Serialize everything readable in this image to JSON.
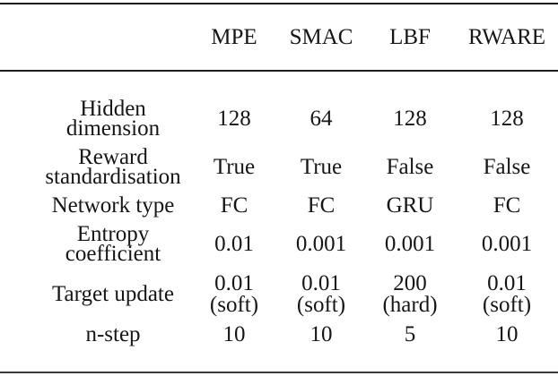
{
  "style": {
    "text_color": "#161616",
    "rule_color": "#1c1c1c",
    "background_color": "#ffffff"
  },
  "table": {
    "columns": [
      "MPE",
      "SMAC",
      "LBF",
      "RWARE"
    ],
    "rows": [
      {
        "label": "Hidden\ndimension",
        "values": [
          "128",
          "64",
          "128",
          "128"
        ]
      },
      {
        "label": "Reward\nstandardisation",
        "values": [
          "True",
          "True",
          "False",
          "False"
        ]
      },
      {
        "label": "Network type",
        "values": [
          "FC",
          "FC",
          "GRU",
          "FC"
        ]
      },
      {
        "label": "Entropy\ncoefficient",
        "values": [
          "0.01",
          "0.001",
          "0.001",
          "0.001"
        ]
      },
      {
        "label": "Target update",
        "values": [
          "0.01\n(soft)",
          "0.01\n(soft)",
          "200\n(hard)",
          "0.01\n(soft)"
        ]
      },
      {
        "label": "n-step",
        "values": [
          "10",
          "10",
          "5",
          "10"
        ]
      }
    ]
  }
}
